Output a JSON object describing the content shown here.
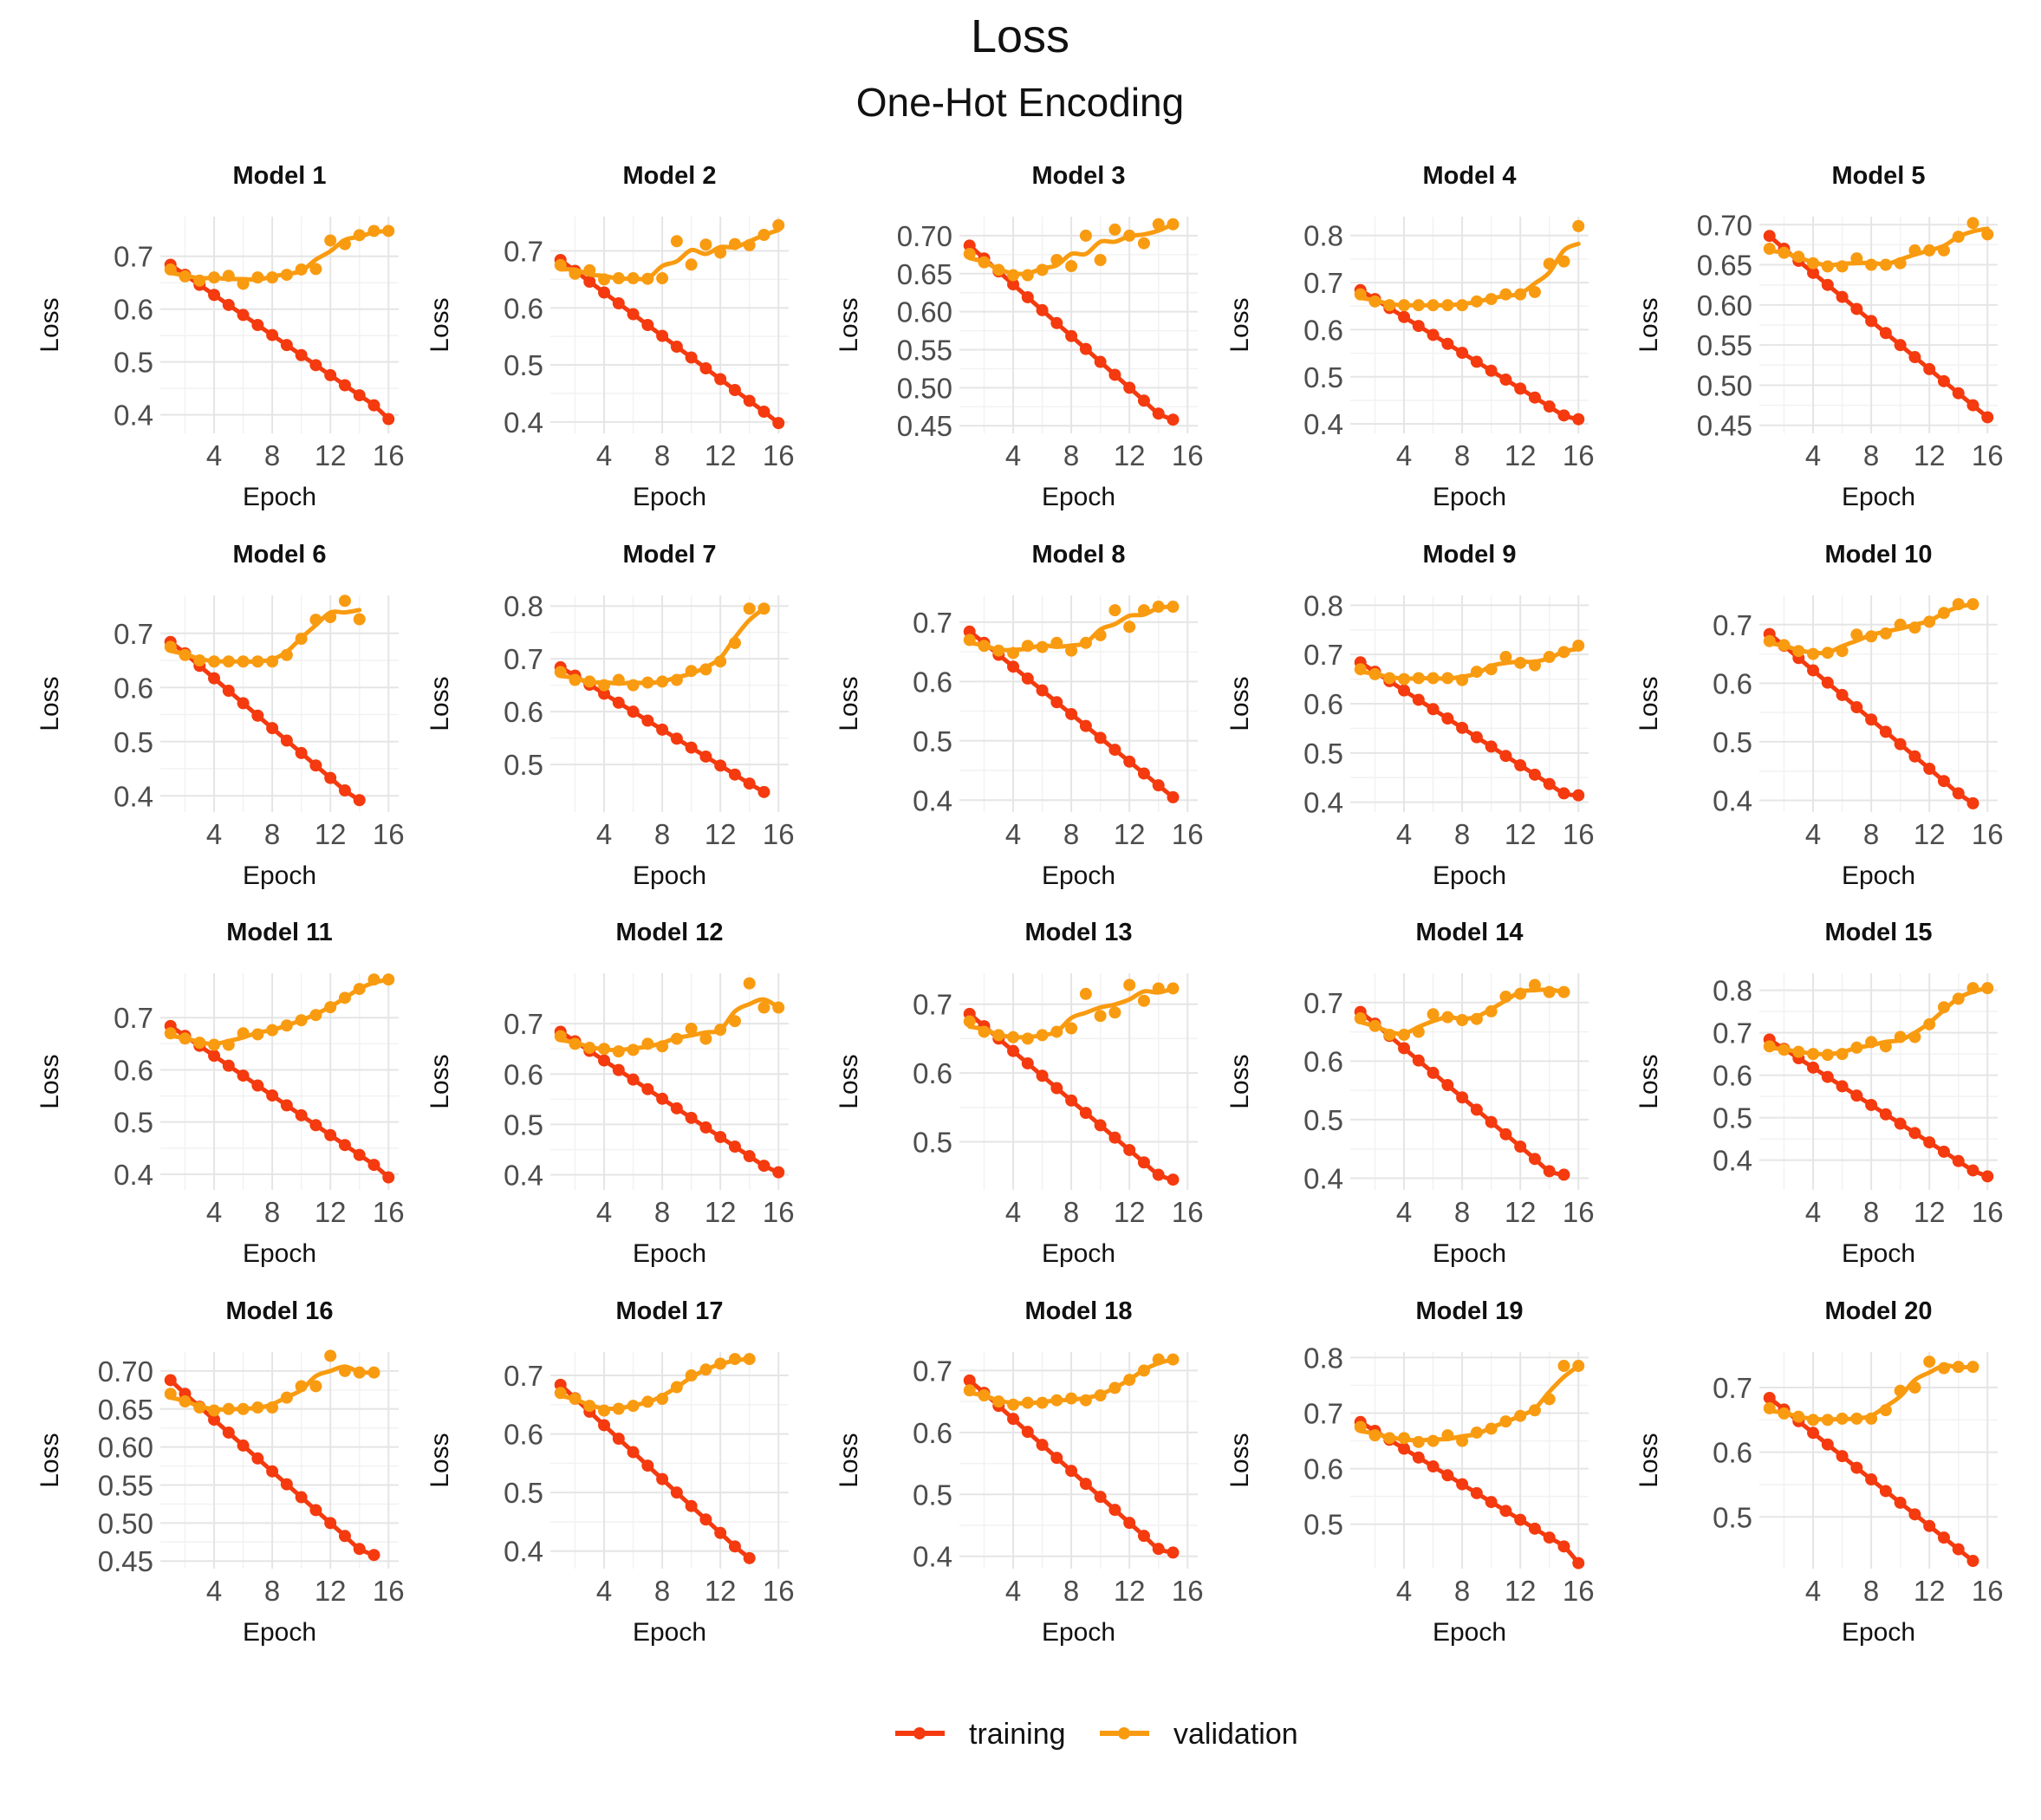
{
  "title": "Loss",
  "subtitle": "One-Hot Encoding",
  "legend": [
    {
      "label": "training",
      "color": "#F43A0E"
    },
    {
      "label": "validation",
      "color": "#F99B10"
    }
  ],
  "chart_data": {
    "type": "line",
    "layout": "facet-grid",
    "title": "Loss",
    "subtitle": "One-Hot Encoding",
    "xlabel": "Epoch",
    "ylabel": "Loss",
    "x_ticks": [
      4,
      8,
      12,
      16
    ],
    "xlim": [
      0.3,
      16.7
    ],
    "grid": true,
    "legend_position": "bottom",
    "series_names": [
      "training",
      "validation"
    ],
    "colors": {
      "training": "#F43A0E",
      "validation": "#F99B10"
    },
    "panels": [
      {
        "title": "Model 1",
        "ylim": [
          0.365,
          0.775
        ],
        "yticks": [
          "0.4",
          "0.5",
          "0.6",
          "0.7"
        ],
        "training": [
          0.684,
          0.665,
          0.646,
          0.627,
          0.608,
          0.589,
          0.57,
          0.551,
          0.532,
          0.513,
          0.494,
          0.475,
          0.456,
          0.437,
          0.418,
          0.392
        ],
        "validation": [
          0.675,
          0.662,
          0.654,
          0.66,
          0.663,
          0.648,
          0.66,
          0.66,
          0.665,
          0.675,
          0.676,
          0.73,
          0.723,
          0.74,
          0.748,
          0.748
        ]
      },
      {
        "title": "Model 2",
        "ylim": [
          0.38,
          0.76
        ],
        "yticks": [
          "0.4",
          "0.5",
          "0.6",
          "0.7"
        ],
        "training": [
          0.684,
          0.665,
          0.646,
          0.627,
          0.608,
          0.589,
          0.57,
          0.551,
          0.532,
          0.513,
          0.494,
          0.475,
          0.456,
          0.437,
          0.418,
          0.398
        ],
        "validation": [
          0.675,
          0.66,
          0.666,
          0.65,
          0.652,
          0.652,
          0.651,
          0.652,
          0.717,
          0.676,
          0.711,
          0.697,
          0.712,
          0.71,
          0.728,
          0.745
        ]
      },
      {
        "title": "Model 3",
        "ylim": [
          0.44,
          0.725
        ],
        "yticks": [
          "0.45",
          "0.50",
          "0.55",
          "0.60",
          "0.65",
          "0.70"
        ],
        "training": [
          0.687,
          0.67,
          0.653,
          0.636,
          0.619,
          0.602,
          0.585,
          0.568,
          0.551,
          0.534,
          0.517,
          0.5,
          0.483,
          0.466,
          0.458
        ],
        "validation": [
          0.676,
          0.665,
          0.655,
          0.648,
          0.648,
          0.655,
          0.668,
          0.66,
          0.7,
          0.668,
          0.708,
          0.7,
          0.69,
          0.715,
          0.715
        ]
      },
      {
        "title": "Model 4",
        "ylim": [
          0.38,
          0.84
        ],
        "yticks": [
          "0.4",
          "0.5",
          "0.6",
          "0.7",
          "0.8"
        ],
        "training": [
          0.684,
          0.665,
          0.646,
          0.627,
          0.608,
          0.589,
          0.57,
          0.551,
          0.532,
          0.513,
          0.494,
          0.475,
          0.456,
          0.437,
          0.418,
          0.41
        ],
        "validation": [
          0.675,
          0.66,
          0.652,
          0.652,
          0.652,
          0.652,
          0.652,
          0.652,
          0.66,
          0.665,
          0.675,
          0.675,
          0.68,
          0.74,
          0.745,
          0.82
        ]
      },
      {
        "title": "Model 5",
        "ylim": [
          0.44,
          0.71
        ],
        "yticks": [
          "0.45",
          "0.50",
          "0.55",
          "0.60",
          "0.65",
          "0.70"
        ],
        "training": [
          0.686,
          0.67,
          0.655,
          0.64,
          0.625,
          0.61,
          0.595,
          0.58,
          0.565,
          0.55,
          0.535,
          0.52,
          0.505,
          0.49,
          0.475,
          0.46
        ],
        "validation": [
          0.67,
          0.665,
          0.66,
          0.652,
          0.648,
          0.648,
          0.658,
          0.65,
          0.65,
          0.652,
          0.668,
          0.668,
          0.668,
          0.685,
          0.702,
          0.688
        ]
      },
      {
        "title": "Model 6",
        "ylim": [
          0.37,
          0.77
        ],
        "yticks": [
          "0.4",
          "0.5",
          "0.6",
          "0.7"
        ],
        "training": [
          0.684,
          0.663,
          0.64,
          0.617,
          0.594,
          0.571,
          0.548,
          0.525,
          0.502,
          0.479,
          0.456,
          0.433,
          0.41,
          0.392
        ],
        "validation": [
          0.675,
          0.66,
          0.65,
          0.648,
          0.648,
          0.648,
          0.648,
          0.648,
          0.66,
          0.69,
          0.725,
          0.73,
          0.76,
          0.726
        ]
      },
      {
        "title": "Model 7",
        "ylim": [
          0.41,
          0.82
        ],
        "yticks": [
          "0.5",
          "0.6",
          "0.7",
          "0.8"
        ],
        "training": [
          0.684,
          0.668,
          0.651,
          0.634,
          0.617,
          0.6,
          0.583,
          0.566,
          0.549,
          0.532,
          0.515,
          0.498,
          0.481,
          0.464,
          0.448
        ],
        "validation": [
          0.675,
          0.66,
          0.657,
          0.65,
          0.66,
          0.65,
          0.655,
          0.657,
          0.66,
          0.677,
          0.68,
          0.695,
          0.73,
          0.795,
          0.795
        ]
      },
      {
        "title": "Model 8",
        "ylim": [
          0.38,
          0.745
        ],
        "yticks": [
          "0.4",
          "0.5",
          "0.6",
          "0.7"
        ],
        "training": [
          0.684,
          0.665,
          0.645,
          0.625,
          0.605,
          0.585,
          0.565,
          0.545,
          0.525,
          0.505,
          0.485,
          0.465,
          0.445,
          0.425,
          0.405
        ],
        "validation": [
          0.67,
          0.66,
          0.652,
          0.648,
          0.66,
          0.658,
          0.665,
          0.652,
          0.665,
          0.678,
          0.72,
          0.692,
          0.72,
          0.726,
          0.726
        ]
      },
      {
        "title": "Model 9",
        "ylim": [
          0.38,
          0.82
        ],
        "yticks": [
          "0.4",
          "0.5",
          "0.6",
          "0.7",
          "0.8"
        ],
        "training": [
          0.684,
          0.665,
          0.646,
          0.627,
          0.608,
          0.589,
          0.57,
          0.551,
          0.532,
          0.513,
          0.494,
          0.475,
          0.456,
          0.437,
          0.418,
          0.414
        ],
        "validation": [
          0.67,
          0.66,
          0.652,
          0.65,
          0.652,
          0.652,
          0.652,
          0.648,
          0.665,
          0.67,
          0.695,
          0.683,
          0.678,
          0.695,
          0.705,
          0.718
        ]
      },
      {
        "title": "Model 10",
        "ylim": [
          0.38,
          0.75
        ],
        "yticks": [
          "0.4",
          "0.5",
          "0.6",
          "0.7"
        ],
        "training": [
          0.684,
          0.664,
          0.643,
          0.622,
          0.601,
          0.58,
          0.559,
          0.538,
          0.517,
          0.496,
          0.475,
          0.454,
          0.433,
          0.412,
          0.395
        ],
        "validation": [
          0.672,
          0.665,
          0.655,
          0.65,
          0.652,
          0.655,
          0.683,
          0.68,
          0.685,
          0.7,
          0.695,
          0.705,
          0.72,
          0.735,
          0.735
        ]
      },
      {
        "title": "Model 11",
        "ylim": [
          0.37,
          0.785
        ],
        "yticks": [
          "0.4",
          "0.5",
          "0.6",
          "0.7"
        ],
        "training": [
          0.684,
          0.665,
          0.646,
          0.627,
          0.608,
          0.589,
          0.57,
          0.551,
          0.532,
          0.513,
          0.494,
          0.475,
          0.456,
          0.437,
          0.418,
          0.394
        ],
        "validation": [
          0.67,
          0.66,
          0.652,
          0.648,
          0.648,
          0.67,
          0.668,
          0.676,
          0.685,
          0.695,
          0.705,
          0.72,
          0.738,
          0.755,
          0.773,
          0.773
        ]
      },
      {
        "title": "Model 12",
        "ylim": [
          0.37,
          0.8
        ],
        "yticks": [
          "0.4",
          "0.5",
          "0.6",
          "0.7"
        ],
        "training": [
          0.684,
          0.665,
          0.646,
          0.627,
          0.608,
          0.589,
          0.57,
          0.551,
          0.532,
          0.513,
          0.494,
          0.475,
          0.456,
          0.437,
          0.418,
          0.405
        ],
        "validation": [
          0.675,
          0.66,
          0.652,
          0.65,
          0.645,
          0.648,
          0.66,
          0.655,
          0.67,
          0.69,
          0.67,
          0.688,
          0.705,
          0.78,
          0.732,
          0.732
        ]
      },
      {
        "title": "Model 13",
        "ylim": [
          0.43,
          0.745
        ],
        "yticks": [
          "0.5",
          "0.6",
          "0.7"
        ],
        "training": [
          0.686,
          0.668,
          0.65,
          0.632,
          0.614,
          0.596,
          0.578,
          0.56,
          0.542,
          0.524,
          0.506,
          0.488,
          0.47,
          0.452,
          0.445
        ],
        "validation": [
          0.675,
          0.66,
          0.655,
          0.652,
          0.65,
          0.655,
          0.66,
          0.665,
          0.715,
          0.683,
          0.688,
          0.728,
          0.705,
          0.723,
          0.723
        ]
      },
      {
        "title": "Model 14",
        "ylim": [
          0.38,
          0.75
        ],
        "yticks": [
          "0.4",
          "0.5",
          "0.6",
          "0.7"
        ],
        "training": [
          0.684,
          0.664,
          0.643,
          0.622,
          0.601,
          0.58,
          0.559,
          0.538,
          0.517,
          0.496,
          0.475,
          0.454,
          0.433,
          0.412,
          0.406
        ],
        "validation": [
          0.673,
          0.66,
          0.645,
          0.645,
          0.65,
          0.68,
          0.675,
          0.67,
          0.672,
          0.685,
          0.71,
          0.715,
          0.73,
          0.718,
          0.718
        ]
      },
      {
        "title": "Model 15",
        "ylim": [
          0.33,
          0.84
        ],
        "yticks": [
          "0.4",
          "0.5",
          "0.6",
          "0.7",
          "0.8"
        ],
        "training": [
          0.684,
          0.662,
          0.64,
          0.618,
          0.596,
          0.574,
          0.552,
          0.53,
          0.508,
          0.486,
          0.464,
          0.442,
          0.42,
          0.398,
          0.376,
          0.362
        ],
        "validation": [
          0.668,
          0.66,
          0.655,
          0.65,
          0.648,
          0.65,
          0.665,
          0.678,
          0.668,
          0.69,
          0.69,
          0.72,
          0.76,
          0.78,
          0.805,
          0.805
        ]
      },
      {
        "title": "Model 16",
        "ylim": [
          0.44,
          0.725
        ],
        "yticks": [
          "0.45",
          "0.50",
          "0.55",
          "0.60",
          "0.65",
          "0.70"
        ],
        "training": [
          0.688,
          0.67,
          0.653,
          0.636,
          0.619,
          0.602,
          0.585,
          0.568,
          0.551,
          0.534,
          0.517,
          0.5,
          0.483,
          0.466,
          0.458
        ],
        "validation": [
          0.67,
          0.66,
          0.652,
          0.648,
          0.65,
          0.65,
          0.652,
          0.652,
          0.665,
          0.68,
          0.68,
          0.72,
          0.7,
          0.698,
          0.698
        ]
      },
      {
        "title": "Model 17",
        "ylim": [
          0.37,
          0.74
        ],
        "yticks": [
          "0.4",
          "0.5",
          "0.6",
          "0.7"
        ],
        "training": [
          0.684,
          0.661,
          0.638,
          0.615,
          0.592,
          0.569,
          0.546,
          0.523,
          0.5,
          0.477,
          0.454,
          0.431,
          0.408,
          0.388
        ],
        "validation": [
          0.67,
          0.66,
          0.648,
          0.64,
          0.643,
          0.648,
          0.655,
          0.66,
          0.68,
          0.7,
          0.71,
          0.72,
          0.728,
          0.728
        ]
      },
      {
        "title": "Model 18",
        "ylim": [
          0.38,
          0.73
        ],
        "yticks": [
          "0.4",
          "0.5",
          "0.6",
          "0.7"
        ],
        "training": [
          0.684,
          0.664,
          0.643,
          0.622,
          0.601,
          0.58,
          0.559,
          0.538,
          0.517,
          0.496,
          0.475,
          0.454,
          0.433,
          0.412,
          0.406
        ],
        "validation": [
          0.668,
          0.66,
          0.65,
          0.645,
          0.648,
          0.648,
          0.652,
          0.655,
          0.652,
          0.66,
          0.672,
          0.685,
          0.7,
          0.718,
          0.718
        ]
      },
      {
        "title": "Model 19",
        "ylim": [
          0.42,
          0.81
        ],
        "yticks": [
          "0.5",
          "0.6",
          "0.7",
          "0.8"
        ],
        "training": [
          0.684,
          0.668,
          0.652,
          0.636,
          0.62,
          0.604,
          0.588,
          0.572,
          0.556,
          0.54,
          0.524,
          0.508,
          0.492,
          0.476,
          0.46,
          0.43
        ],
        "validation": [
          0.675,
          0.66,
          0.655,
          0.655,
          0.648,
          0.65,
          0.66,
          0.65,
          0.665,
          0.672,
          0.685,
          0.695,
          0.705,
          0.725,
          0.785,
          0.785
        ]
      },
      {
        "title": "Model 20",
        "ylim": [
          0.42,
          0.755
        ],
        "yticks": [
          "0.5",
          "0.6",
          "0.7"
        ],
        "training": [
          0.684,
          0.666,
          0.648,
          0.63,
          0.612,
          0.594,
          0.576,
          0.558,
          0.54,
          0.522,
          0.504,
          0.486,
          0.468,
          0.45,
          0.432
        ],
        "validation": [
          0.668,
          0.66,
          0.655,
          0.65,
          0.65,
          0.652,
          0.652,
          0.652,
          0.665,
          0.695,
          0.7,
          0.74,
          0.73,
          0.732,
          0.732
        ]
      }
    ]
  }
}
